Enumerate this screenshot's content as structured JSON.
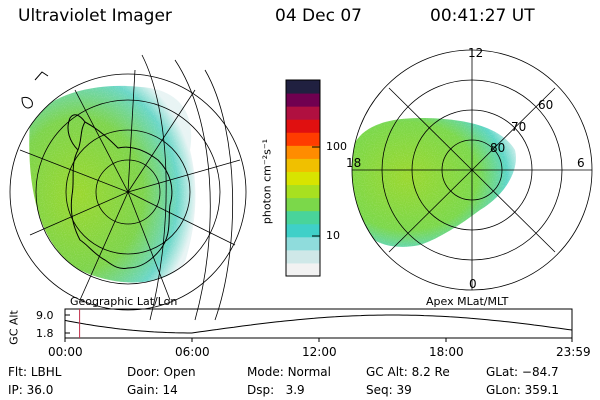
{
  "header": {
    "title": "Ultraviolet Imager",
    "date": "04 Dec 07",
    "time": "00:41:27 UT"
  },
  "panels": {
    "left_caption": "Geographic Lat/Lon",
    "right_caption": "Apex MLat/MLT"
  },
  "colorbar": {
    "unit_label": "photon cm⁻²s⁻¹",
    "ticks": [
      "100",
      "10"
    ],
    "scale": "log",
    "colors": [
      "#f2f2f2",
      "#cfe8e8",
      "#8fdcdc",
      "#3fd0c8",
      "#49d49a",
      "#7bd84a",
      "#a8e020",
      "#d8e400",
      "#f0c000",
      "#ff8c00",
      "#ff3c00",
      "#e01010",
      "#b01040",
      "#700050",
      "#202040"
    ]
  },
  "mlt_labels": {
    "noon": "12",
    "dawn": "6",
    "dusk": "18",
    "midnight": "0"
  },
  "mlat_labels": [
    "60",
    "70",
    "80"
  ],
  "altitude_track": {
    "ylabel": "GC Alt",
    "y_ticks": [
      "9.0",
      "1.8"
    ],
    "x_ticks": [
      "00:00",
      "06:00",
      "12:00",
      "18:00",
      "23:59"
    ],
    "marker_time_hr": 0.69,
    "marker_color": "#c0304a"
  },
  "status": {
    "row1": [
      {
        "label": "Flt:",
        "value": "LBHL"
      },
      {
        "label": "Door:",
        "value": "Open"
      },
      {
        "label": "Mode:",
        "value": "Normal"
      },
      {
        "label": "GC Alt:",
        "value": "8.2 Re"
      },
      {
        "label": "GLat:",
        "value": "−84.7"
      }
    ],
    "row2": [
      {
        "label": "IP:",
        "value": "36.0"
      },
      {
        "label": "Gain:",
        "value": "14"
      },
      {
        "label": "Dsp:",
        "value": "3.9"
      },
      {
        "label": "Seq:",
        "value": "39"
      },
      {
        "label": "GLon:",
        "value": "359.1"
      }
    ]
  }
}
